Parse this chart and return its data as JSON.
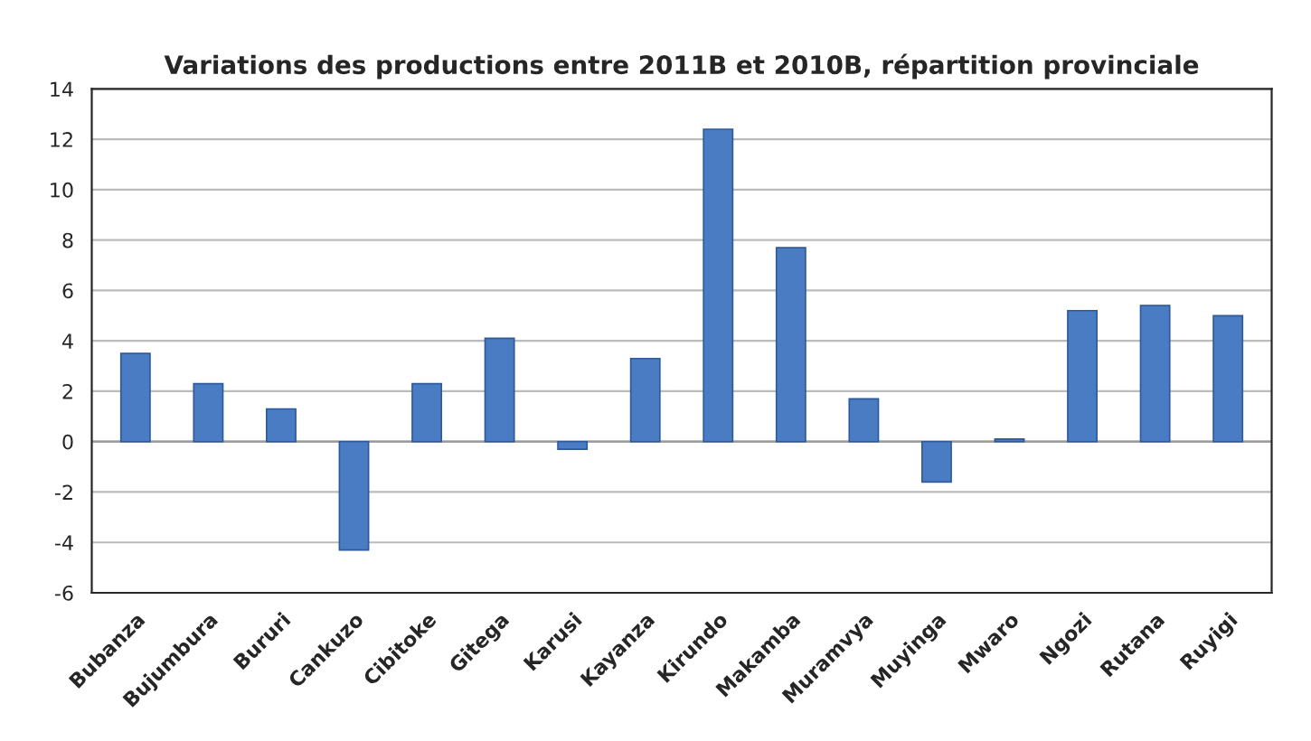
{
  "chart_data": {
    "type": "bar",
    "title": "Variations des productions entre 2011B et 2010B, répartition provinciale",
    "categories": [
      "Bubanza",
      "Bujumbura",
      "Bururi",
      "Cankuzo",
      "Cibitoke",
      "Gitega",
      "Karusi",
      "Kayanza",
      "Kirundo",
      "Makamba",
      "Muramvya",
      "Muyinga",
      "Mwaro",
      "Ngozi",
      "Rutana",
      "Ruyigi"
    ],
    "values": [
      3.5,
      2.3,
      1.3,
      -4.3,
      2.3,
      4.1,
      -0.3,
      3.3,
      12.4,
      7.7,
      1.7,
      -1.6,
      0.1,
      5.2,
      5.4,
      5.0
    ],
    "color": "#4a7cc4",
    "ylim": [
      -6,
      14
    ],
    "yticks": [
      -6,
      -4,
      -2,
      0,
      2,
      4,
      6,
      8,
      10,
      12,
      14
    ],
    "grid": "y",
    "legend": false
  }
}
